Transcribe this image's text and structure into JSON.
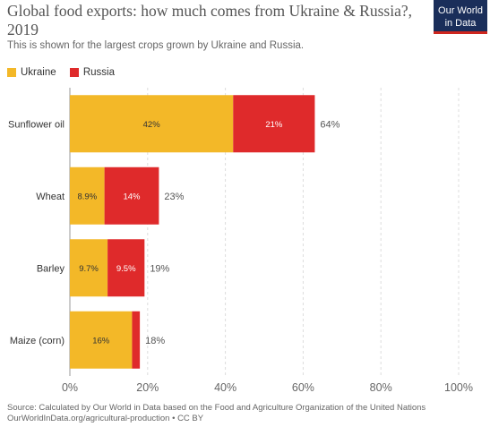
{
  "header": {
    "title": "Global food exports: how much comes from Ukraine & Russia?, 2019",
    "subtitle": "This is shown for the largest crops grown by Ukraine and Russia.",
    "logo_line1": "Our World",
    "logo_line2": "in Data"
  },
  "colors": {
    "ukraine": "#f3b828",
    "russia": "#df2a2b",
    "grid": "#dddddd",
    "label": "#333333"
  },
  "chart_data": {
    "type": "bar",
    "orientation": "horizontal",
    "stacked": true,
    "categories": [
      "Sunflower oil",
      "Wheat",
      "Barley",
      "Maize (corn)"
    ],
    "series": [
      {
        "name": "Ukraine",
        "values": [
          42,
          8.9,
          9.7,
          16
        ],
        "labels": [
          "42%",
          "8.9%",
          "9.7%",
          "16%"
        ]
      },
      {
        "name": "Russia",
        "values": [
          21,
          14,
          9.5,
          2
        ],
        "labels": [
          "21%",
          "14%",
          "9.5%",
          ""
        ]
      }
    ],
    "totals": [
      "64%",
      "23%",
      "19%",
      "18%"
    ],
    "xlim": [
      0,
      100
    ],
    "xticks": [
      0,
      20,
      40,
      60,
      80,
      100
    ],
    "xtick_labels": [
      "0%",
      "20%",
      "40%",
      "60%",
      "80%",
      "100%"
    ],
    "legend": "top-left",
    "grid": true
  },
  "footer": {
    "source_line1": "Source: Calculated by Our World in Data based on the Food and Agriculture Organization of the United Nations",
    "source_line2": "OurWorldInData.org/agricultural-production • CC BY"
  }
}
